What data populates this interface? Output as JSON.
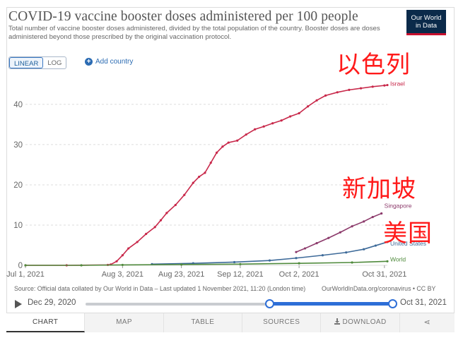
{
  "header": {
    "title": "COVID-19 vaccine booster doses administered per 100 people",
    "subtitle": "Total number of vaccine booster doses administered, divided by the total population of the country. Booster doses are doses administered beyond those prescribed by the original vaccination protocol.",
    "logo_line1": "Our World",
    "logo_line2": "in Data"
  },
  "controls": {
    "linear_label": "LINEAR",
    "log_label": "LOG",
    "add_country_label": "Add country"
  },
  "annotations": {
    "israel": "以色列",
    "singapore": "新加坡",
    "usa": "美国"
  },
  "chart_data": {
    "type": "line",
    "title": "COVID-19 vaccine booster doses administered per 100 people",
    "xlabel": "",
    "ylabel": "",
    "x_range": [
      "2021-07-01",
      "2021-11-01"
    ],
    "ylim": [
      0,
      47
    ],
    "y_ticks": [
      0,
      10,
      20,
      30,
      40
    ],
    "x_ticks": [
      {
        "date": "2021-07-01",
        "label": "Jul 1, 2021"
      },
      {
        "date": "2021-08-03",
        "label": "Aug 3, 2021"
      },
      {
        "date": "2021-08-23",
        "label": "Aug 23, 2021"
      },
      {
        "date": "2021-09-12",
        "label": "Sep 12, 2021"
      },
      {
        "date": "2021-10-02",
        "label": "Oct 2, 2021"
      },
      {
        "date": "2021-10-31",
        "label": "Oct 31, 2021"
      }
    ],
    "grid": "horizontal-dashed",
    "legend": "line-end labels",
    "series": [
      {
        "name": "Israel",
        "color": "#c8284a",
        "points": [
          [
            "2021-07-01",
            0.0
          ],
          [
            "2021-07-15",
            0.0
          ],
          [
            "2021-07-29",
            0.1
          ],
          [
            "2021-07-30",
            0.2
          ],
          [
            "2021-08-01",
            1.0
          ],
          [
            "2021-08-03",
            2.5
          ],
          [
            "2021-08-05",
            4.2
          ],
          [
            "2021-08-08",
            5.8
          ],
          [
            "2021-08-11",
            7.8
          ],
          [
            "2021-08-14",
            9.5
          ],
          [
            "2021-08-16",
            11.2
          ],
          [
            "2021-08-18",
            13.0
          ],
          [
            "2021-08-21",
            15.0
          ],
          [
            "2021-08-24",
            17.5
          ],
          [
            "2021-08-27",
            20.5
          ],
          [
            "2021-08-29",
            22.0
          ],
          [
            "2021-08-31",
            23.0
          ],
          [
            "2021-09-02",
            25.5
          ],
          [
            "2021-09-04",
            28.0
          ],
          [
            "2021-09-06",
            29.5
          ],
          [
            "2021-09-08",
            30.5
          ],
          [
            "2021-09-11",
            31.0
          ],
          [
            "2021-09-14",
            32.5
          ],
          [
            "2021-09-17",
            33.8
          ],
          [
            "2021-09-20",
            34.5
          ],
          [
            "2021-09-23",
            35.3
          ],
          [
            "2021-09-26",
            36.0
          ],
          [
            "2021-09-29",
            37.0
          ],
          [
            "2021-10-02",
            37.8
          ],
          [
            "2021-10-05",
            39.5
          ],
          [
            "2021-10-08",
            41.0
          ],
          [
            "2021-10-11",
            42.2
          ],
          [
            "2021-10-15",
            43.0
          ],
          [
            "2021-10-19",
            43.6
          ],
          [
            "2021-10-23",
            44.0
          ],
          [
            "2021-10-27",
            44.4
          ],
          [
            "2021-10-31",
            44.7
          ],
          [
            "2021-11-01",
            44.8
          ]
        ]
      },
      {
        "name": "Singapore",
        "color": "#8c3a6b",
        "points": [
          [
            "2021-10-01",
            3.3
          ],
          [
            "2021-10-04",
            4.2
          ],
          [
            "2021-10-08",
            5.5
          ],
          [
            "2021-10-12",
            6.8
          ],
          [
            "2021-10-16",
            8.2
          ],
          [
            "2021-10-20",
            9.7
          ],
          [
            "2021-10-24",
            10.9
          ],
          [
            "2021-10-27",
            12.0
          ],
          [
            "2021-10-30",
            12.9
          ]
        ]
      },
      {
        "name": "United States",
        "color": "#3d6a99",
        "points": [
          [
            "2021-08-13",
            0.3
          ],
          [
            "2021-08-27",
            0.5
          ],
          [
            "2021-09-10",
            0.8
          ],
          [
            "2021-09-22",
            1.2
          ],
          [
            "2021-10-01",
            1.8
          ],
          [
            "2021-10-10",
            2.5
          ],
          [
            "2021-10-18",
            3.2
          ],
          [
            "2021-10-24",
            4.0
          ],
          [
            "2021-10-28",
            4.9
          ],
          [
            "2021-11-01",
            5.8
          ]
        ]
      },
      {
        "name": "World",
        "color": "#4f8a3c",
        "points": [
          [
            "2021-07-01",
            0.0
          ],
          [
            "2021-07-20",
            0.0
          ],
          [
            "2021-08-03",
            0.1
          ],
          [
            "2021-08-23",
            0.2
          ],
          [
            "2021-09-12",
            0.3
          ],
          [
            "2021-10-02",
            0.5
          ],
          [
            "2021-10-20",
            0.7
          ],
          [
            "2021-11-01",
            1.0
          ]
        ]
      }
    ]
  },
  "footer": {
    "source": "Source: Official data collated by Our World in Data – Last updated 1 November 2021, 11:20 (London time)",
    "site": "OurWorldInData.org/coronavirus • CC BY"
  },
  "timeline": {
    "start_label": "Dec 29, 2020",
    "end_label": "Oct 31, 2021",
    "selection_start_fraction": 0.598,
    "selection_end_fraction": 1.0
  },
  "tabs": [
    {
      "label": "CHART",
      "active": true
    },
    {
      "label": "MAP",
      "active": false
    },
    {
      "label": "TABLE",
      "active": false
    },
    {
      "label": "SOURCES",
      "active": false
    },
    {
      "label": "DOWNLOAD",
      "active": false
    }
  ]
}
